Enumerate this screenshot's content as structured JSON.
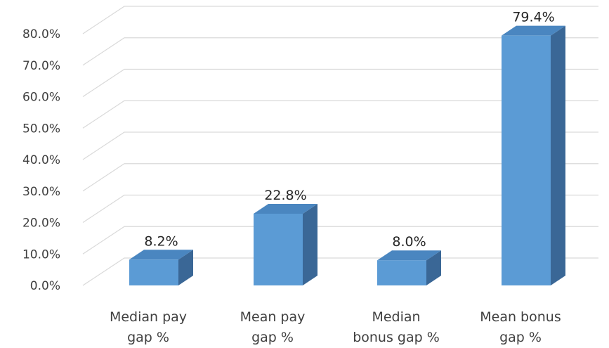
{
  "chart_data": {
    "type": "bar",
    "style": "3d-column",
    "categories": [
      [
        "Median pay",
        "gap %"
      ],
      [
        "Mean pay",
        "gap %"
      ],
      [
        "Median",
        "bonus gap %"
      ],
      [
        "Mean bonus",
        "gap %"
      ]
    ],
    "values": [
      8.2,
      22.8,
      8.0,
      79.4
    ],
    "data_labels": [
      "8.2%",
      "22.8%",
      "8.0%",
      "79.4%"
    ],
    "ylim": [
      0,
      80
    ],
    "y_ticks": [
      "0.0%",
      "10.0%",
      "20.0%",
      "30.0%",
      "40.0%",
      "50.0%",
      "60.0%",
      "70.0%",
      "80.0%"
    ],
    "grid": true,
    "legend": "none",
    "colors": {
      "bar_front": "#5b9bd5",
      "bar_top": "#4a86c0",
      "bar_side": "#3a6796",
      "grid": "#d9d9d9"
    }
  }
}
